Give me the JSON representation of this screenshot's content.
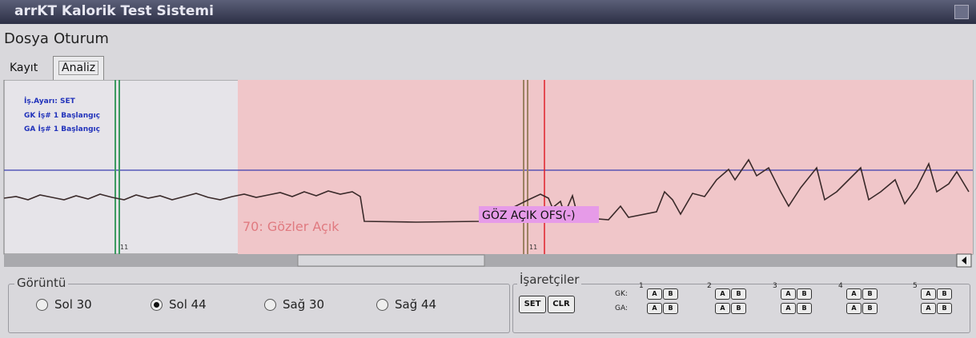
{
  "window": {
    "title": "arrKT Kalorik Test Sistemi"
  },
  "menu": [
    "Dosya",
    "Oturum"
  ],
  "tabs": [
    "Kayıt",
    "Analiz"
  ],
  "plot": {
    "notes": [
      "İş.Ayarı: SET",
      "GK İş# 1 Başlangıç",
      "GA İş# 1 Başlangıç"
    ],
    "region_label": "70: Gözler Açık",
    "event_label": "GÖZ AÇIK OFS(-)",
    "line_labels": [
      "11",
      "11"
    ]
  },
  "display": {
    "title": "Görüntü",
    "options": [
      "Sol 30",
      "Sol 44",
      "Sağ 30",
      "Sağ 44"
    ],
    "checked": [
      false,
      true,
      false,
      false
    ]
  },
  "markers": {
    "title": "İşaretçiler",
    "buttons": [
      "SET",
      "CLR"
    ],
    "rows": [
      "GK:",
      "GA:"
    ],
    "columns": [
      "1",
      "2",
      "3",
      "4",
      "5"
    ],
    "keys": [
      "A",
      "B"
    ]
  }
}
